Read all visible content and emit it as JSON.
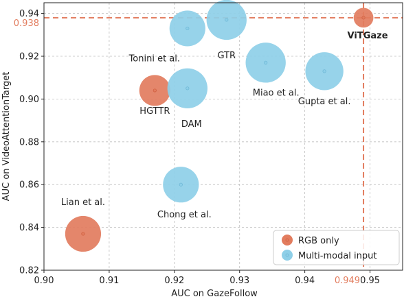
{
  "chart_data": {
    "type": "scatter",
    "xlabel": "AUC on GazeFollow",
    "ylabel": "AUC on VideoAttentionTarget",
    "xlim": [
      0.9,
      0.955
    ],
    "ylim": [
      0.82,
      0.945
    ],
    "xticks": [
      "0.90",
      "0.91",
      "0.92",
      "0.93",
      "0.94",
      "0.95"
    ],
    "yticks": [
      "0.82",
      "0.84",
      "0.86",
      "0.88",
      "0.90",
      "0.92",
      "0.94"
    ],
    "grid": true,
    "legend_position": "bottom-right",
    "colors": {
      "rgb": "#e27c5e",
      "multimodal": "#8ecfe8",
      "ref_line": "#e27c5e"
    },
    "reference": {
      "x": 0.949,
      "y": 0.938,
      "x_label": "0.949",
      "y_label": "0.938"
    },
    "series": [
      {
        "name": "RGB only",
        "points": [
          {
            "label": "ViTGaze",
            "x": 0.949,
            "y": 0.938,
            "size": 1,
            "bold": true
          },
          {
            "label": "HGTTR",
            "x": 0.917,
            "y": 0.904,
            "size": 3
          },
          {
            "label": "Lian et al.",
            "x": 0.906,
            "y": 0.837,
            "size": 4
          }
        ]
      },
      {
        "name": "Multi-modal input",
        "points": [
          {
            "label": "Tonini et al.",
            "x": 0.922,
            "y": 0.933,
            "size": 4
          },
          {
            "label": "GTR",
            "x": 0.928,
            "y": 0.937,
            "size": 5
          },
          {
            "label": "Miao et al.",
            "x": 0.934,
            "y": 0.917,
            "size": 5
          },
          {
            "label": "Gupta et al.",
            "x": 0.943,
            "y": 0.913,
            "size": 4.5
          },
          {
            "label": "DAM",
            "x": 0.922,
            "y": 0.905,
            "size": 5
          },
          {
            "label": "Chong et al.",
            "x": 0.921,
            "y": 0.86,
            "size": 4
          }
        ]
      }
    ]
  }
}
